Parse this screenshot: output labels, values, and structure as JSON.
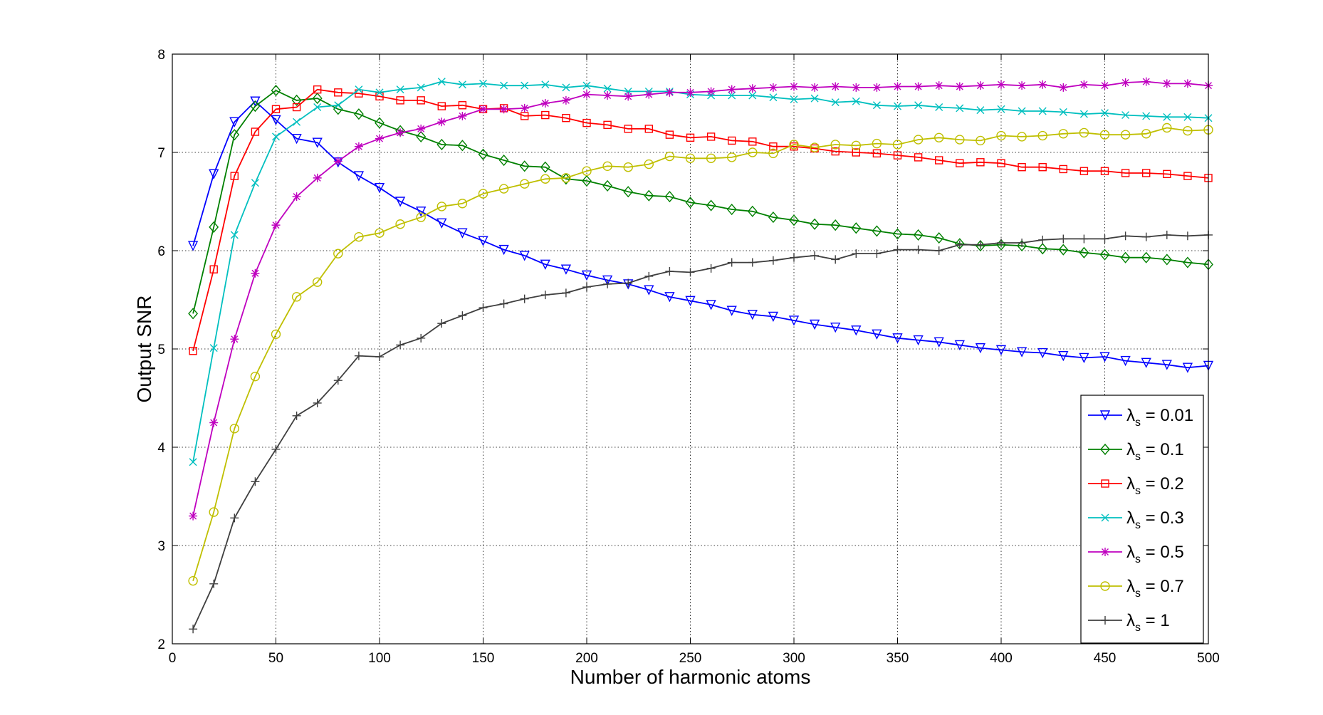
{
  "chart_data": {
    "type": "line",
    "title": "",
    "xlabel": "Number of harmonic atoms",
    "ylabel": "Output SNR",
    "xlim": [
      0,
      500
    ],
    "ylim": [
      2,
      8
    ],
    "xticks": [
      0,
      50,
      100,
      150,
      200,
      250,
      300,
      350,
      400,
      450,
      500
    ],
    "yticks": [
      2,
      3,
      4,
      5,
      6,
      7,
      8
    ],
    "grid": true,
    "legend_position": "bottom-right",
    "x": [
      10,
      20,
      30,
      40,
      50,
      60,
      70,
      80,
      90,
      100,
      110,
      120,
      130,
      140,
      150,
      160,
      170,
      180,
      190,
      200,
      210,
      220,
      230,
      240,
      250,
      260,
      270,
      280,
      290,
      300,
      310,
      320,
      330,
      340,
      350,
      360,
      370,
      380,
      390,
      400,
      410,
      420,
      430,
      440,
      450,
      460,
      470,
      480,
      490,
      500
    ],
    "series": [
      {
        "name": "λs = 0.01",
        "legend_symbol": "λ",
        "legend_sub": "s",
        "legend_value": " = 0.01",
        "color": "#0000ff",
        "marker": "triangle-down",
        "values": [
          6.05,
          6.78,
          7.31,
          7.52,
          7.33,
          7.14,
          7.1,
          6.9,
          6.76,
          6.64,
          6.5,
          6.4,
          6.28,
          6.18,
          6.1,
          6.01,
          5.95,
          5.86,
          5.81,
          5.75,
          5.7,
          5.66,
          5.6,
          5.53,
          5.49,
          5.45,
          5.39,
          5.35,
          5.33,
          5.29,
          5.25,
          5.22,
          5.19,
          5.15,
          5.11,
          5.09,
          5.07,
          5.04,
          5.01,
          4.99,
          4.97,
          4.96,
          4.93,
          4.91,
          4.92,
          4.88,
          4.86,
          4.84,
          4.81,
          4.83
        ]
      },
      {
        "name": "λs = 0.1",
        "legend_symbol": "λ",
        "legend_sub": "s",
        "legend_value": " = 0.1",
        "color": "#008000",
        "marker": "diamond",
        "values": [
          5.36,
          6.24,
          7.18,
          7.47,
          7.63,
          7.53,
          7.55,
          7.44,
          7.39,
          7.3,
          7.22,
          7.16,
          7.08,
          7.07,
          6.98,
          6.92,
          6.86,
          6.85,
          6.73,
          6.71,
          6.66,
          6.6,
          6.56,
          6.55,
          6.49,
          6.46,
          6.42,
          6.4,
          6.34,
          6.31,
          6.27,
          6.26,
          6.23,
          6.2,
          6.17,
          6.16,
          6.13,
          6.07,
          6.05,
          6.06,
          6.05,
          6.02,
          6.01,
          5.98,
          5.96,
          5.93,
          5.93,
          5.91,
          5.88,
          5.86
        ]
      },
      {
        "name": "λs = 0.2",
        "legend_symbol": "λ",
        "legend_sub": "s",
        "legend_value": " = 0.2",
        "color": "#ff0000",
        "marker": "square",
        "values": [
          4.98,
          5.81,
          6.76,
          7.21,
          7.44,
          7.46,
          7.64,
          7.61,
          7.6,
          7.57,
          7.53,
          7.53,
          7.47,
          7.48,
          7.44,
          7.45,
          7.37,
          7.38,
          7.35,
          7.3,
          7.28,
          7.24,
          7.24,
          7.18,
          7.15,
          7.16,
          7.12,
          7.11,
          7.06,
          7.06,
          7.04,
          7.01,
          7.0,
          6.99,
          6.97,
          6.95,
          6.92,
          6.89,
          6.9,
          6.89,
          6.85,
          6.85,
          6.83,
          6.81,
          6.81,
          6.79,
          6.79,
          6.78,
          6.76,
          6.74
        ]
      },
      {
        "name": "λs = 0.3",
        "legend_symbol": "λ",
        "legend_sub": "s",
        "legend_value": " = 0.3",
        "color": "#00bfbf",
        "marker": "x",
        "values": [
          3.85,
          5.01,
          6.16,
          6.69,
          7.16,
          7.31,
          7.46,
          7.48,
          7.64,
          7.61,
          7.64,
          7.66,
          7.72,
          7.69,
          7.7,
          7.68,
          7.68,
          7.69,
          7.66,
          7.68,
          7.65,
          7.62,
          7.62,
          7.62,
          7.59,
          7.58,
          7.58,
          7.58,
          7.56,
          7.54,
          7.55,
          7.51,
          7.52,
          7.48,
          7.47,
          7.48,
          7.46,
          7.45,
          7.43,
          7.44,
          7.42,
          7.42,
          7.41,
          7.39,
          7.4,
          7.38,
          7.37,
          7.36,
          7.36,
          7.35
        ]
      },
      {
        "name": "λs = 0.5",
        "legend_symbol": "λ",
        "legend_sub": "s",
        "legend_value": " = 0.5",
        "color": "#bf00bf",
        "marker": "star",
        "values": [
          3.3,
          4.25,
          5.1,
          5.77,
          6.26,
          6.55,
          6.74,
          6.91,
          7.06,
          7.14,
          7.2,
          7.24,
          7.31,
          7.37,
          7.44,
          7.44,
          7.45,
          7.5,
          7.53,
          7.59,
          7.58,
          7.57,
          7.59,
          7.61,
          7.61,
          7.62,
          7.64,
          7.65,
          7.66,
          7.67,
          7.66,
          7.67,
          7.66,
          7.66,
          7.67,
          7.67,
          7.68,
          7.67,
          7.68,
          7.69,
          7.68,
          7.69,
          7.66,
          7.69,
          7.68,
          7.71,
          7.72,
          7.7,
          7.7,
          7.68
        ]
      },
      {
        "name": "λs = 0.7",
        "legend_symbol": "λ",
        "legend_sub": "s",
        "legend_value": " = 0.7",
        "color": "#bfbf00",
        "marker": "circle",
        "values": [
          2.64,
          3.34,
          4.19,
          4.72,
          5.15,
          5.53,
          5.68,
          5.97,
          6.14,
          6.18,
          6.27,
          6.34,
          6.45,
          6.48,
          6.58,
          6.63,
          6.68,
          6.73,
          6.74,
          6.81,
          6.86,
          6.85,
          6.88,
          6.96,
          6.94,
          6.94,
          6.95,
          7.0,
          6.99,
          7.08,
          7.05,
          7.08,
          7.07,
          7.09,
          7.08,
          7.13,
          7.15,
          7.13,
          7.12,
          7.17,
          7.16,
          7.17,
          7.19,
          7.2,
          7.18,
          7.18,
          7.19,
          7.25,
          7.22,
          7.23
        ]
      },
      {
        "name": "λs = 1",
        "legend_symbol": "λ",
        "legend_sub": "s",
        "legend_value": " = 1",
        "color": "#3f3f3f",
        "marker": "plus",
        "values": [
          2.15,
          2.61,
          3.28,
          3.65,
          3.98,
          4.32,
          4.45,
          4.68,
          4.93,
          4.92,
          5.04,
          5.11,
          5.26,
          5.34,
          5.42,
          5.46,
          5.51,
          5.55,
          5.57,
          5.63,
          5.66,
          5.67,
          5.74,
          5.79,
          5.78,
          5.82,
          5.88,
          5.88,
          5.9,
          5.93,
          5.95,
          5.91,
          5.97,
          5.97,
          6.01,
          6.01,
          6.0,
          6.06,
          6.06,
          6.08,
          6.08,
          6.11,
          6.12,
          6.12,
          6.12,
          6.15,
          6.14,
          6.16,
          6.15,
          6.16
        ]
      }
    ]
  }
}
